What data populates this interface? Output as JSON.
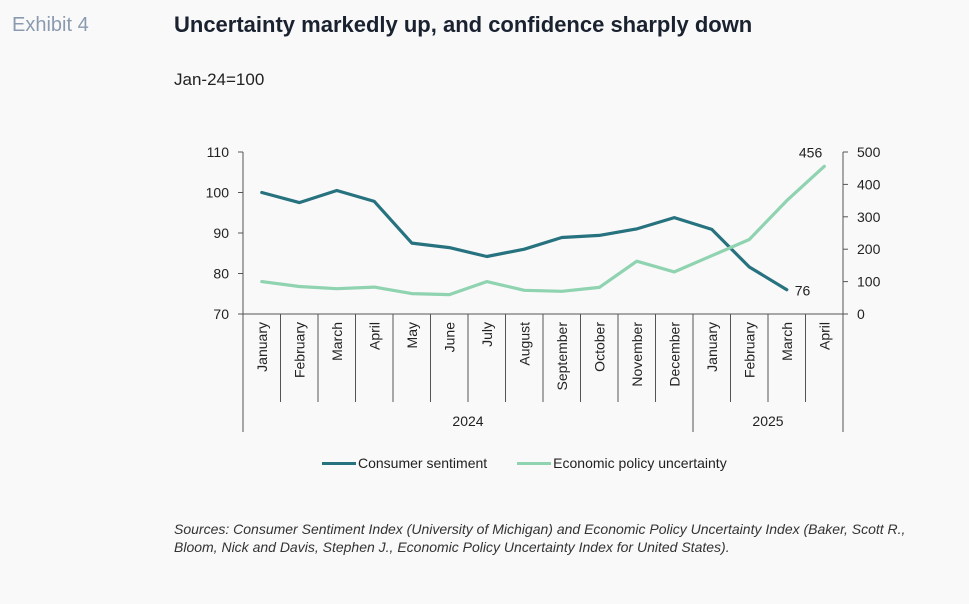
{
  "header": {
    "exhibit": "Exhibit 4",
    "title": "Uncertainty markedly up, and confidence sharply down",
    "subtitle": "Jan-24=100"
  },
  "colors": {
    "sentiment": "#27727f",
    "uncertainty": "#8fd3b0"
  },
  "chart_data": {
    "type": "line",
    "categories": [
      "January",
      "February",
      "March",
      "April",
      "May",
      "June",
      "July",
      "August",
      "September",
      "October",
      "November",
      "December",
      "January",
      "February",
      "March",
      "April"
    ],
    "year_groups": [
      {
        "label": "2024",
        "count": 12
      },
      {
        "label": "2025",
        "count": 4
      }
    ],
    "series": [
      {
        "name": "Consumer sentiment",
        "axis": "left",
        "values": [
          100,
          97.5,
          100.5,
          97.8,
          87.5,
          86.4,
          84.2,
          86,
          88.9,
          89.4,
          91,
          93.8,
          90.9,
          81.6,
          76,
          null
        ]
      },
      {
        "name": "Economic policy uncertainty",
        "axis": "right",
        "values": [
          100,
          85,
          78,
          83,
          63,
          60,
          100,
          73,
          70,
          82,
          163,
          130,
          180,
          230,
          350,
          456
        ]
      }
    ],
    "y_left": {
      "min": 70,
      "max": 110,
      "ticks": [
        70,
        80,
        90,
        100,
        110
      ]
    },
    "y_right": {
      "min": 0,
      "max": 500,
      "ticks": [
        0,
        100,
        200,
        300,
        400,
        500
      ]
    },
    "annotations": [
      {
        "series": 0,
        "index": 14,
        "text": "76"
      },
      {
        "series": 1,
        "index": 15,
        "text": "456"
      }
    ],
    "legend_position": "bottom"
  },
  "sources": "Sources: Consumer Sentiment Index (University of Michigan) and Economic Policy Uncertainty Index (Baker, Scott R., Bloom, Nick and Davis, Stephen J., Economic Policy Uncertainty Index for United States)."
}
